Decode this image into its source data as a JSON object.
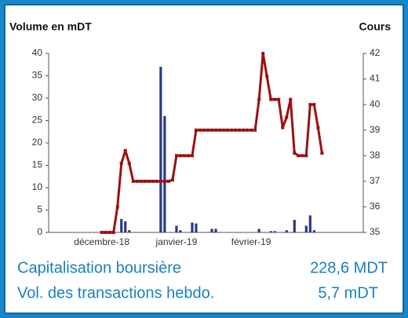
{
  "chart_data": {
    "type": "bar-line",
    "y_label": "Volume en mDT",
    "y2_label": "Cours",
    "categories": [
      null,
      null,
      null,
      null,
      null,
      null,
      null,
      null,
      null,
      null,
      null,
      null,
      null,
      "décembre-18",
      null,
      null,
      null,
      null,
      null,
      null,
      null,
      null,
      null,
      null,
      null,
      null,
      null,
      null,
      null,
      null,
      null,
      null,
      "janvier-19",
      null,
      null,
      null,
      null,
      null,
      null,
      null,
      null,
      null,
      null,
      null,
      null,
      null,
      null,
      null,
      null,
      null,
      null,
      "février-19",
      null,
      null,
      null,
      null,
      null,
      null,
      null,
      null,
      null,
      null,
      null,
      null,
      null,
      null,
      null,
      null,
      null,
      null,
      null,
      null,
      null,
      null,
      null,
      null,
      null,
      null,
      null,
      null
    ],
    "series": [
      {
        "name": "Volume",
        "type": "bar",
        "color": "#2b3a86",
        "values": [
          null,
          null,
          null,
          null,
          null,
          null,
          null,
          null,
          null,
          null,
          null,
          null,
          null,
          null,
          null,
          null,
          null,
          null,
          3,
          2.5,
          0.5,
          null,
          null,
          null,
          null,
          null,
          null,
          null,
          37,
          26,
          null,
          null,
          1.5,
          0.5,
          null,
          null,
          2.2,
          2,
          null,
          null,
          null,
          0.8,
          0.8,
          null,
          null,
          null,
          null,
          null,
          null,
          null,
          null,
          null,
          null,
          0.8,
          null,
          null,
          0.3,
          0.3,
          null,
          null,
          0.5,
          null,
          2.8,
          null,
          null,
          1.5,
          3.8,
          0.5,
          null,
          null,
          null,
          null,
          null,
          null,
          null,
          null,
          null,
          null,
          null,
          null
        ]
      },
      {
        "name": "Cours",
        "type": "line",
        "axis": "y2",
        "color": "#9b1111",
        "values": [
          null,
          null,
          null,
          null,
          null,
          null,
          null,
          null,
          null,
          null,
          null,
          null,
          null,
          35,
          35,
          35,
          35,
          36,
          37.7,
          38.2,
          37.7,
          37,
          37,
          37,
          37,
          37,
          37,
          37,
          37,
          37,
          37,
          37.05,
          38,
          38,
          38,
          38,
          38,
          39,
          39,
          39,
          39,
          39,
          39,
          39,
          39,
          39,
          39,
          39,
          39,
          39,
          39,
          39,
          39,
          40.2,
          42,
          41.1,
          40.2,
          40.2,
          40.2,
          39.1,
          39.5,
          40.2,
          38.1,
          38,
          38,
          38,
          40,
          40,
          39.1,
          38.1,
          null,
          null,
          null,
          null,
          null,
          null,
          null,
          null,
          null,
          null
        ]
      }
    ],
    "ylim": [
      0,
      40
    ],
    "yticks": [
      0,
      5,
      10,
      15,
      20,
      25,
      30,
      35,
      40
    ],
    "y2lim": [
      35,
      42
    ],
    "y2ticks": [
      35,
      36,
      37,
      38,
      39,
      40,
      41,
      42
    ]
  },
  "info": [
    {
      "label": "Capitalisation boursière",
      "value": "228,6 MDT"
    },
    {
      "label": "Vol. des transactions hebdo.",
      "value": "5,7 mDT"
    }
  ]
}
